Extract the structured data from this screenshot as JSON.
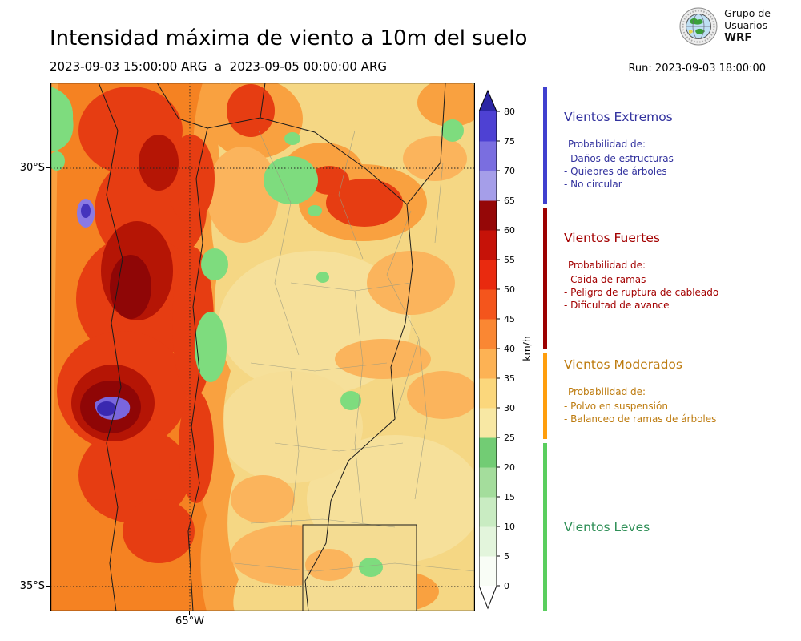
{
  "header": {
    "title": "Intensidad máxima de viento a 10m del suelo",
    "period": "2023-09-03 15:00:00 ARG  a  2023-09-05 00:00:00 ARG",
    "run": "Run: 2023-09-03 18:00:00",
    "logo_lines": [
      "Grupo de",
      "Usuarios",
      "WRF"
    ]
  },
  "map": {
    "lat_labels": [
      "30°S",
      "35°S"
    ],
    "lon_label": "65°W"
  },
  "colorbar": {
    "unit": "km/h",
    "min": 0,
    "max": 80,
    "step": 5,
    "ticks": [
      0,
      5,
      10,
      15,
      20,
      25,
      30,
      35,
      40,
      45,
      50,
      55,
      60,
      65,
      70,
      75,
      80
    ],
    "segment_colors": [
      "#f9fdf6",
      "#e3f5dc",
      "#c9ecc2",
      "#a4dd9c",
      "#72cc74",
      "#f8e8a4",
      "#fbd77c",
      "#fdb254",
      "#fa8733",
      "#f4551c",
      "#e92a0f",
      "#c61208",
      "#950707",
      "#a59ee9",
      "#7a6ee0",
      "#4e41d3"
    ],
    "over_color": "#2c26a5",
    "under_color": "#ffffff"
  },
  "legend": {
    "categories": [
      {
        "title": "Vientos Extremos",
        "text_color": "#32329e",
        "bar_color": "#4040cf",
        "range_kmh": [
          65,
          85
        ],
        "prob_label": "Probabilidad de:",
        "items": [
          "- Daños de estructuras",
          "- Quiebres de árboles",
          "- No circular"
        ]
      },
      {
        "title": "Vientos Fuertes",
        "text_color": "#a30000",
        "bar_color": "#9c0000",
        "range_kmh": [
          40,
          65
        ],
        "prob_label": "Probabilidad de:",
        "items": [
          "- Caida de ramas",
          "- Peligro de ruptura de cableado",
          "- Dificultad de avance"
        ]
      },
      {
        "title": "Vientos Moderados",
        "text_color": "#bd7b0f",
        "bar_color": "#ff9e0d",
        "range_kmh": [
          25,
          40
        ],
        "prob_label": "Probabilidad de:",
        "items": [
          "- Polvo en suspensión",
          "- Balanceo de ramas de árboles"
        ]
      },
      {
        "title": "Vientos Leves",
        "text_color": "#2f8f57",
        "bar_color": "#5ace5e",
        "range_kmh": [
          0,
          25
        ],
        "prob_label": "",
        "items": []
      }
    ]
  },
  "chart_data": {
    "type": "heatmap",
    "title": "Intensidad máxima de viento a 10m del suelo",
    "valid_period": [
      "2023-09-03 15:00:00 ARG",
      "2023-09-05 00:00:00 ARG"
    ],
    "model_run": "2023-09-03 18:00:00",
    "units": "km/h",
    "colorbar_levels": [
      0,
      5,
      10,
      15,
      20,
      25,
      30,
      35,
      40,
      45,
      50,
      55,
      60,
      65,
      70,
      75,
      80
    ],
    "lat_ticks": [
      "30°S",
      "35°S"
    ],
    "lon_ticks": [
      "65°W"
    ],
    "categories": [
      {
        "name": "Vientos Leves",
        "range_kmh": [
          0,
          25
        ]
      },
      {
        "name": "Vientos Moderados",
        "range_kmh": [
          25,
          40
        ]
      },
      {
        "name": "Vientos Fuertes",
        "range_kmh": [
          40,
          65
        ]
      },
      {
        "name": "Vientos Extremos",
        "range_kmh": [
          65,
          85
        ]
      }
    ]
  }
}
